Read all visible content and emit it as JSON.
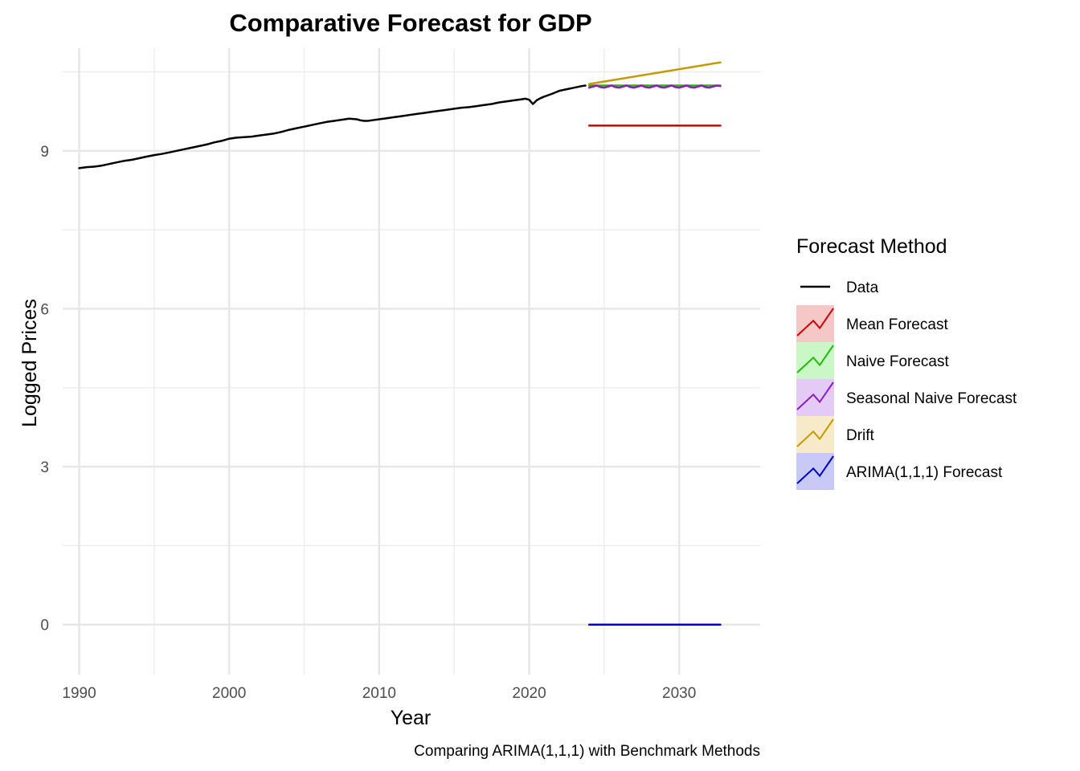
{
  "chart_data": {
    "type": "line",
    "title": "Comparative Forecast for GDP",
    "subtitle": "",
    "xlabel": "Year",
    "ylabel": "Logged Prices",
    "caption": "Comparing ARIMA(1,1,1) with Benchmark Methods",
    "xlim": [
      1988.9,
      2035.4
    ],
    "ylim": [
      -0.95,
      10.95
    ],
    "x_ticks": [
      1990,
      2000,
      2010,
      2020,
      2030
    ],
    "y_ticks": [
      0,
      3,
      6,
      9
    ],
    "grid": true,
    "legend": {
      "title": "Forecast Method",
      "position": "right",
      "entries": [
        {
          "label": "Data",
          "color": "#000000",
          "fill": null
        },
        {
          "label": "Mean Forecast",
          "color": "#cc0000",
          "fill": "#f4c4c4"
        },
        {
          "label": "Naive Forecast",
          "color": "#22bb00",
          "fill": "#c6f7c3"
        },
        {
          "label": "Seasonal Naive Forecast",
          "color": "#8e1bc0",
          "fill": "#e3c8f5"
        },
        {
          "label": "Drift",
          "color": "#c49a00",
          "fill": "#f5e9c6"
        },
        {
          "label": "ARIMA(1,1,1) Forecast",
          "color": "#0000cc",
          "fill": "#c6c6f7"
        }
      ]
    },
    "series": [
      {
        "name": "Data",
        "color": "#000000",
        "x": [
          1990.0,
          1990.5,
          1991.0,
          1991.5,
          1992.0,
          1992.5,
          1993.0,
          1993.5,
          1994.0,
          1994.5,
          1995.0,
          1995.5,
          1996.0,
          1996.5,
          1997.0,
          1997.5,
          1998.0,
          1998.5,
          1999.0,
          1999.5,
          2000.0,
          2000.5,
          2001.0,
          2001.5,
          2002.0,
          2002.5,
          2003.0,
          2003.5,
          2004.0,
          2004.5,
          2005.0,
          2005.5,
          2006.0,
          2006.5,
          2007.0,
          2007.5,
          2008.0,
          2008.5,
          2008.75,
          2009.0,
          2009.25,
          2009.5,
          2010.0,
          2010.5,
          2011.0,
          2011.5,
          2012.0,
          2012.5,
          2013.0,
          2013.5,
          2014.0,
          2014.5,
          2015.0,
          2015.5,
          2016.0,
          2016.5,
          2017.0,
          2017.5,
          2018.0,
          2018.5,
          2019.0,
          2019.5,
          2019.75,
          2020.0,
          2020.25,
          2020.5,
          2020.75,
          2021.0,
          2021.5,
          2022.0,
          2022.5,
          2023.0,
          2023.5,
          2023.75
        ],
        "values": [
          8.67,
          8.69,
          8.7,
          8.72,
          8.75,
          8.78,
          8.81,
          8.83,
          8.86,
          8.89,
          8.92,
          8.94,
          8.97,
          9.0,
          9.03,
          9.06,
          9.09,
          9.12,
          9.16,
          9.19,
          9.23,
          9.25,
          9.26,
          9.27,
          9.29,
          9.31,
          9.33,
          9.36,
          9.4,
          9.43,
          9.46,
          9.49,
          9.52,
          9.55,
          9.57,
          9.59,
          9.61,
          9.6,
          9.58,
          9.57,
          9.57,
          9.58,
          9.6,
          9.62,
          9.64,
          9.66,
          9.68,
          9.7,
          9.72,
          9.74,
          9.76,
          9.78,
          9.8,
          9.82,
          9.83,
          9.85,
          9.87,
          9.89,
          9.92,
          9.94,
          9.96,
          9.98,
          9.99,
          9.97,
          9.89,
          9.96,
          10.0,
          10.03,
          10.08,
          10.14,
          10.17,
          10.2,
          10.23,
          10.24
        ]
      },
      {
        "name": "Mean Forecast",
        "color": "#cc0000",
        "x": [
          2024.0,
          2032.75
        ],
        "values": [
          9.48,
          9.48
        ]
      },
      {
        "name": "Naive Forecast",
        "color": "#22bb00",
        "x": [
          2024.0,
          2032.75
        ],
        "values": [
          10.24,
          10.24
        ]
      },
      {
        "name": "Seasonal Naive Forecast",
        "color": "#8e1bc0",
        "x": [
          2024.0,
          2024.25,
          2024.5,
          2024.75,
          2025.0,
          2025.25,
          2025.5,
          2025.75,
          2026.0,
          2026.25,
          2026.5,
          2026.75,
          2027.0,
          2027.25,
          2027.5,
          2027.75,
          2028.0,
          2028.25,
          2028.5,
          2028.75,
          2029.0,
          2029.25,
          2029.5,
          2029.75,
          2030.0,
          2030.25,
          2030.5,
          2030.75,
          2031.0,
          2031.25,
          2031.5,
          2031.75,
          2032.0,
          2032.25,
          2032.5,
          2032.75
        ],
        "values": [
          10.2,
          10.22,
          10.24,
          10.21,
          10.2,
          10.22,
          10.24,
          10.21,
          10.2,
          10.22,
          10.24,
          10.21,
          10.2,
          10.22,
          10.24,
          10.21,
          10.2,
          10.22,
          10.24,
          10.21,
          10.2,
          10.22,
          10.24,
          10.21,
          10.2,
          10.22,
          10.24,
          10.21,
          10.2,
          10.22,
          10.24,
          10.21,
          10.2,
          10.22,
          10.24,
          10.23
        ]
      },
      {
        "name": "Drift",
        "color": "#c49a00",
        "x": [
          2024.0,
          2032.75
        ],
        "values": [
          10.27,
          10.68
        ]
      },
      {
        "name": "ARIMA(1,1,1) Forecast",
        "color": "#0000cc",
        "x": [
          2024.0,
          2032.75
        ],
        "values": [
          0.0,
          0.0
        ]
      }
    ]
  }
}
